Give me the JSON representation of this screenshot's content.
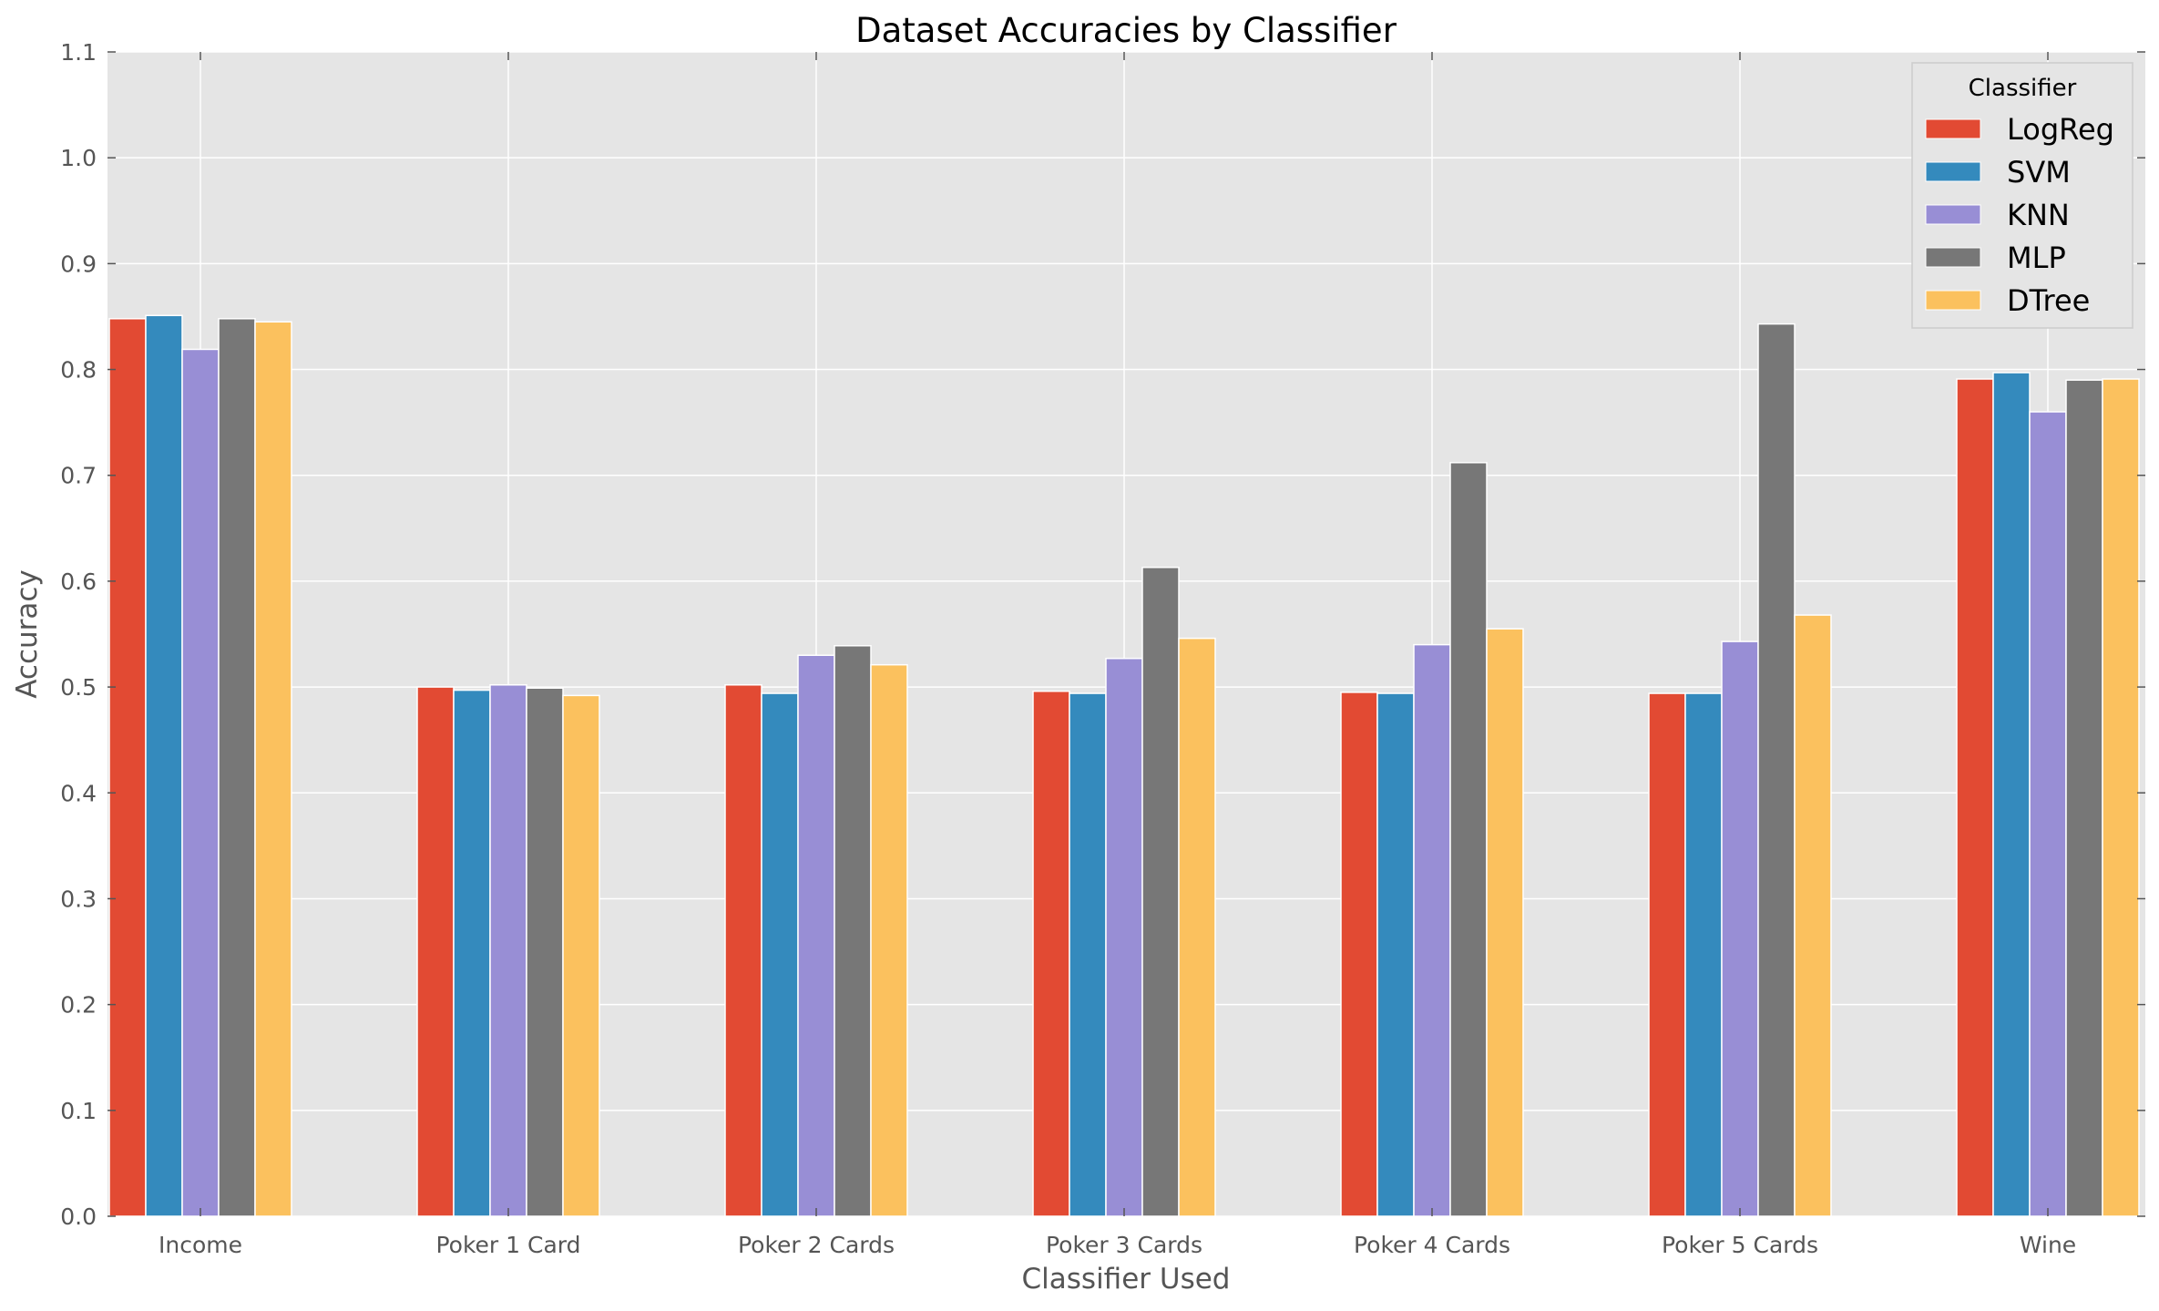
{
  "chart_data": {
    "type": "bar",
    "title": "Dataset Accuracies by Classifier",
    "xlabel": "Classifier Used",
    "ylabel": "Accuracy",
    "ylim": [
      0,
      1.1
    ],
    "yticks": [
      "0.0",
      "0.1",
      "0.2",
      "0.3",
      "0.4",
      "0.5",
      "0.6",
      "0.7",
      "0.8",
      "0.9",
      "1.0",
      "1.1"
    ],
    "categories": [
      "Income",
      "Poker 1 Card",
      "Poker 2 Cards",
      "Poker 3 Cards",
      "Poker 4 Cards",
      "Poker 5 Cards",
      "Wine"
    ],
    "series": [
      {
        "name": "LogReg",
        "color": "#E24A33",
        "values": [
          0.848,
          0.5,
          0.502,
          0.496,
          0.495,
          0.494,
          0.791
        ]
      },
      {
        "name": "SVM",
        "color": "#348ABD",
        "values": [
          0.851,
          0.497,
          0.494,
          0.494,
          0.494,
          0.494,
          0.797
        ]
      },
      {
        "name": "KNN",
        "color": "#988ED5",
        "values": [
          0.819,
          0.502,
          0.53,
          0.527,
          0.54,
          0.543,
          0.76
        ]
      },
      {
        "name": "MLP",
        "color": "#777777",
        "values": [
          0.848,
          0.499,
          0.539,
          0.613,
          0.712,
          0.843,
          0.79
        ]
      },
      {
        "name": "DTree",
        "color": "#FBC15E",
        "values": [
          0.845,
          0.492,
          0.521,
          0.546,
          0.555,
          0.568,
          0.791
        ]
      }
    ],
    "grid": true,
    "legend": {
      "title": "Classifier",
      "placement": "top-right"
    },
    "plot_background": "#E5E5E5",
    "grid_color": "#FFFFFF"
  }
}
